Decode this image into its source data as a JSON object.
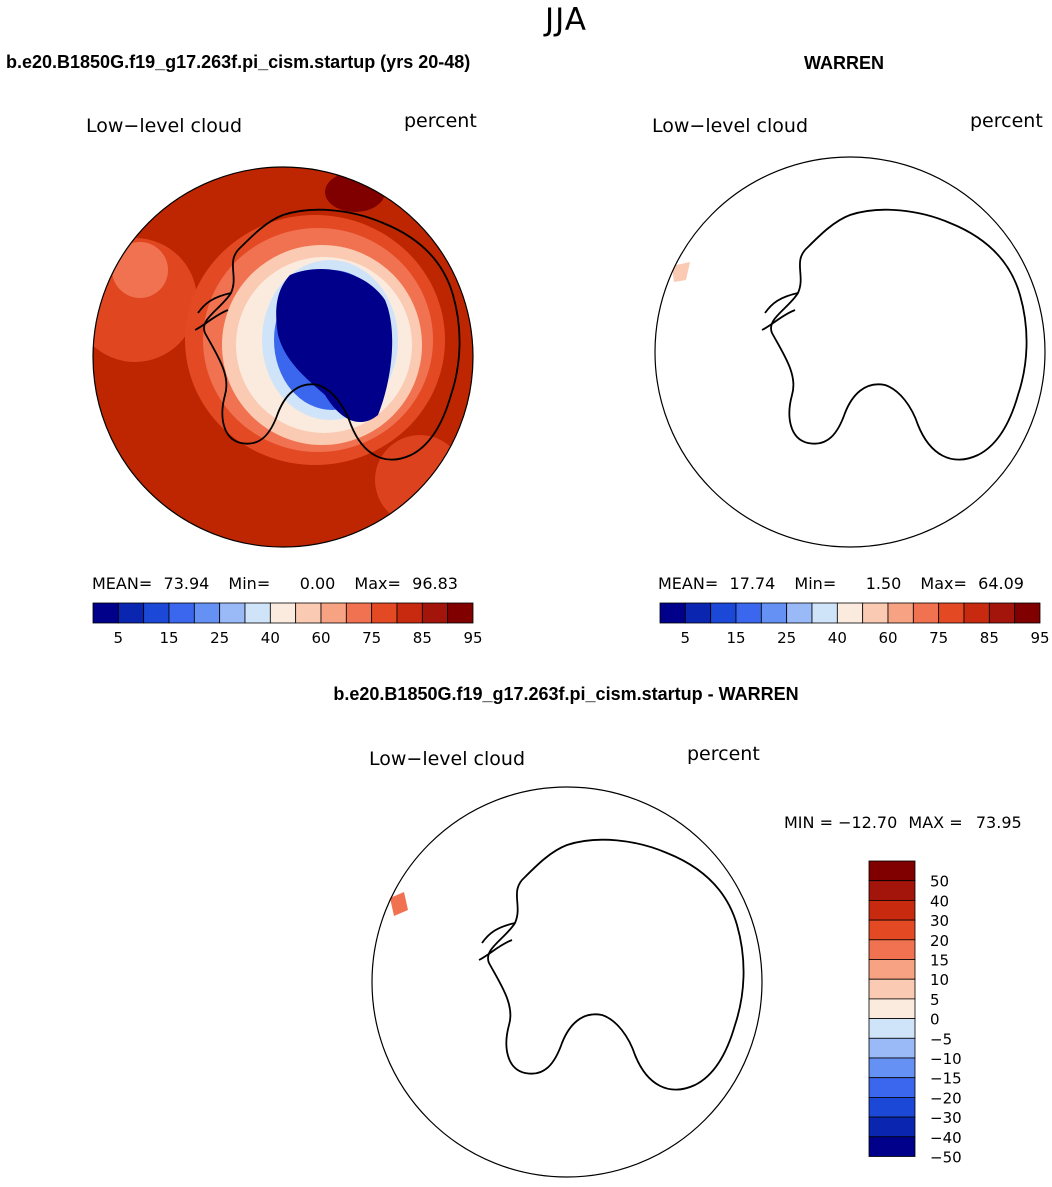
{
  "season": "JJA",
  "colors": {
    "abs_scale": [
      "#00008b",
      "#0a26b0",
      "#1c48d8",
      "#3a67ee",
      "#6590f4",
      "#9ab9f7",
      "#cfe3f9",
      "#fbebdf",
      "#fbcab3",
      "#f7a283",
      "#f17250",
      "#e34a24",
      "#c82a10",
      "#a3150a",
      "#800000"
    ],
    "diff_scale": [
      "#00008b",
      "#0a26b0",
      "#1c48d8",
      "#3a67ee",
      "#6590f4",
      "#9ab9f7",
      "#cfe3f9",
      "#fbebdf",
      "#fbcab3",
      "#f7a283",
      "#f17250",
      "#e34a24",
      "#c82a10",
      "#a3150a",
      "#800000"
    ],
    "ocean_case": "#bd2600",
    "ice_plateau": "#00008b"
  },
  "chart_data": [
    {
      "id": "case",
      "type": "heatmap",
      "projection": "south-polar-stereographic",
      "title": "b.e20.B1850G.f19_g17.263f.pi_cism.startup (yrs 20-48)",
      "field_label": "Low−level cloud",
      "units": "percent",
      "stats": {
        "mean_label": "MEAN=",
        "mean": "73.94",
        "min_label": "Min=",
        "min": "0.00",
        "max_label": "Max=",
        "max": "96.83"
      },
      "colorbar_ticks": [
        "5",
        "15",
        "25",
        "40",
        "60",
        "75",
        "85",
        "95"
      ],
      "colorbar_levels": [
        5,
        10,
        15,
        20,
        25,
        30,
        40,
        50,
        60,
        70,
        75,
        80,
        85,
        90,
        95
      ],
      "values_summary": {
        "southern_ocean": 90,
        "antarctic_interior": 5,
        "coastal_ring": 60
      }
    },
    {
      "id": "obs",
      "type": "heatmap",
      "projection": "south-polar-stereographic",
      "title": "WARREN",
      "field_label": "Low−level cloud",
      "units": "percent",
      "stats": {
        "mean_label": "MEAN=",
        "mean": "17.74",
        "min_label": "Min=",
        "min": "1.50",
        "max_label": "Max=",
        "max": "64.09"
      },
      "colorbar_ticks": [
        "5",
        "15",
        "25",
        "40",
        "60",
        "75",
        "85",
        "95"
      ],
      "colorbar_levels": [
        5,
        10,
        15,
        20,
        25,
        30,
        40,
        50,
        60,
        70,
        75,
        80,
        85,
        90,
        95
      ],
      "values_summary": {
        "small_patch_near_peninsula": 60
      }
    },
    {
      "id": "diff",
      "type": "heatmap",
      "projection": "south-polar-stereographic",
      "title": "b.e20.B1850G.f19_g17.263f.pi_cism.startup - WARREN",
      "field_label": "Low−level cloud",
      "units": "percent",
      "stats": {
        "min_label": "MIN =",
        "min": "−12.70",
        "max_label": "MAX =",
        "max": "73.95"
      },
      "colorbar_ticks": [
        "50",
        "40",
        "30",
        "20",
        "15",
        "10",
        "5",
        "0",
        "−5",
        "−10",
        "−15",
        "−20",
        "−30",
        "−40",
        "−50"
      ],
      "colorbar_levels": [
        -50,
        -40,
        -30,
        -20,
        -15,
        -10,
        -5,
        0,
        5,
        10,
        15,
        20,
        30,
        40,
        50
      ],
      "values_summary": {
        "small_patch_near_peninsula": 20
      }
    }
  ]
}
